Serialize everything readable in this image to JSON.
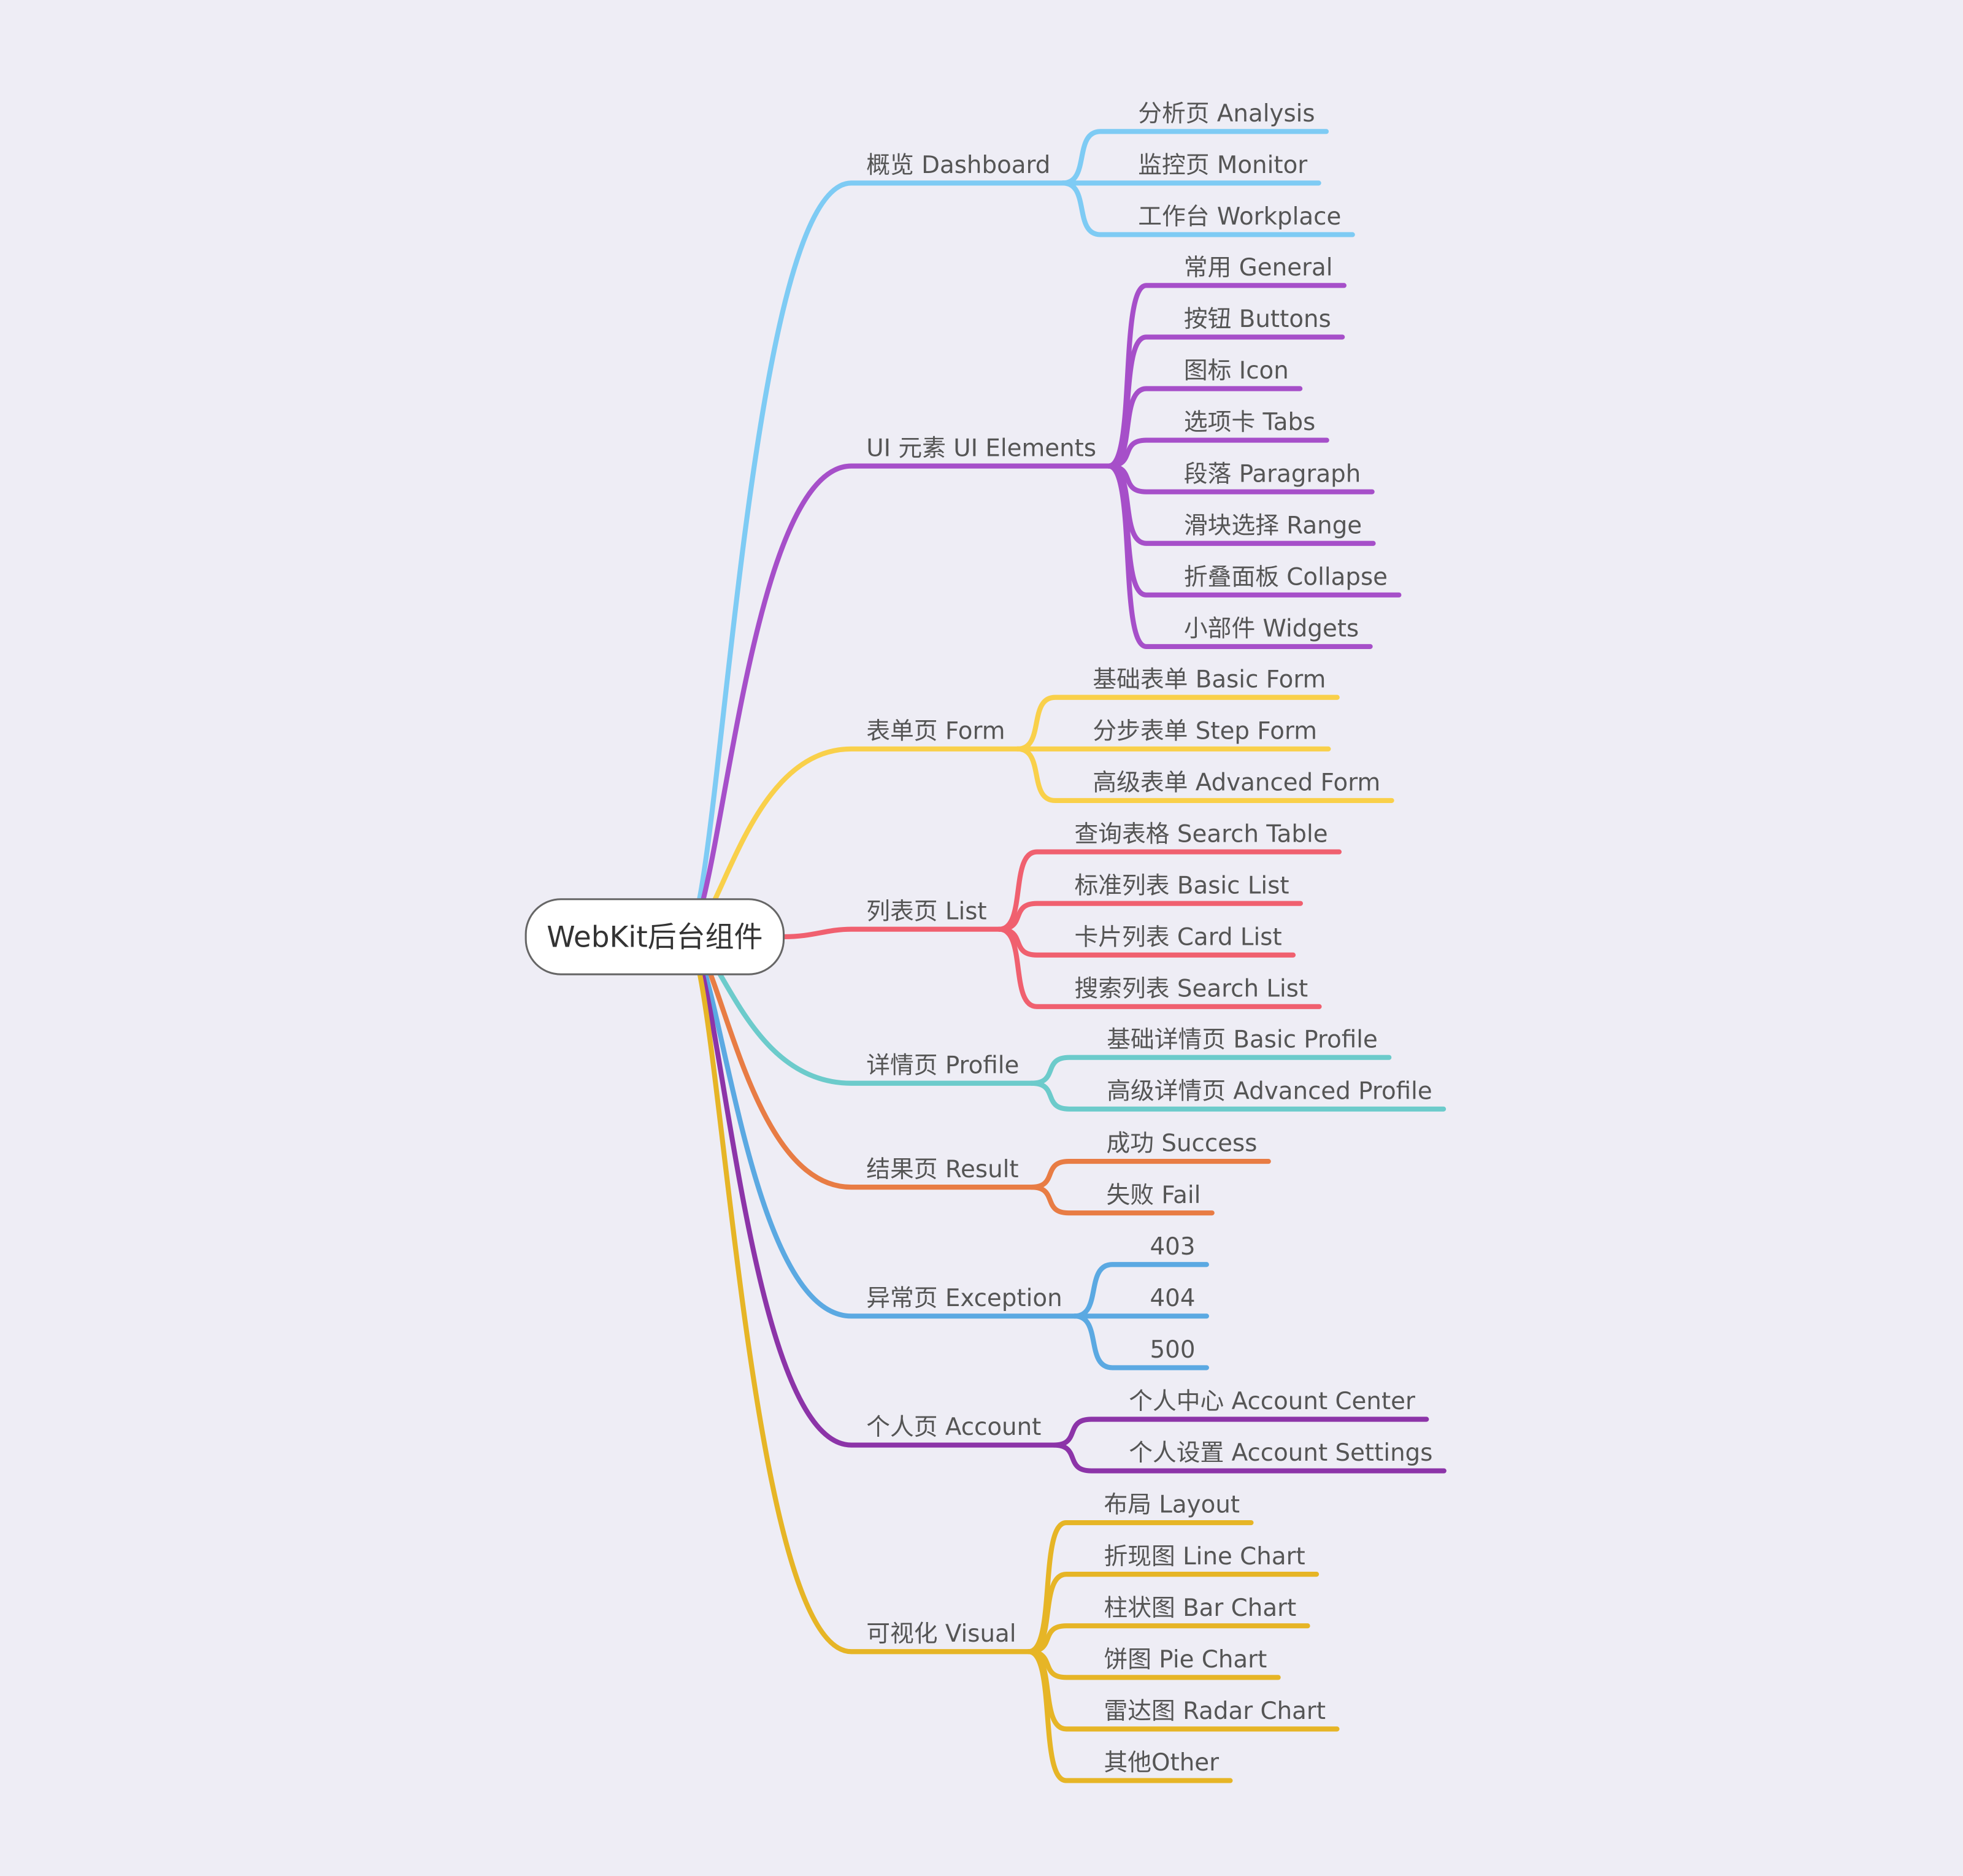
{
  "root": "WebKit后台组件",
  "branches": [
    {
      "label": "概览 Dashboard",
      "color": "#7ecbf4",
      "children": [
        "分析页 Analysis",
        "监控页 Monitor",
        "工作台 Workplace"
      ]
    },
    {
      "label": "UI 元素 UI Elements",
      "color": "#a64fc9",
      "children": [
        "常用 General",
        "按钮 Buttons",
        "图标 Icon",
        "选项卡 Tabs",
        "段落 Paragraph",
        "滑块选择 Range",
        "折叠面板 Collapse",
        "小部件 Widgets"
      ]
    },
    {
      "label": "表单页 Form",
      "color": "#f9d04a",
      "children": [
        "基础表单 Basic Form",
        "分步表单 Step Form",
        "高级表单 Advanced Form"
      ]
    },
    {
      "label": "列表页 List",
      "color": "#f0606f",
      "children": [
        "查询表格 Search Table",
        "标准列表 Basic List",
        "卡片列表 Card List",
        "搜索列表 Search List"
      ]
    },
    {
      "label": "详情页 Profile",
      "color": "#6ccbcb",
      "children": [
        "基础详情页 Basic Profile",
        "高级详情页 Advanced Profile"
      ]
    },
    {
      "label": "结果页 Result",
      "color": "#e87c44",
      "children": [
        "成功 Success",
        "失败 Fail"
      ]
    },
    {
      "label": "异常页 Exception",
      "color": "#5ba9e2",
      "children": [
        "403",
        "404",
        "500"
      ]
    },
    {
      "label": "个人页 Account",
      "color": "#8c34a8",
      "children": [
        "个人中心 Account Center",
        "个人设置 Account Settings"
      ]
    },
    {
      "label": "可视化 Visual",
      "color": "#e6b526",
      "children": [
        "布局 Layout",
        "折现图 Line Chart",
        "柱状图 Bar Chart",
        "饼图 Pie Chart",
        "雷达图 Radar Chart",
        "其他Other"
      ]
    }
  ]
}
